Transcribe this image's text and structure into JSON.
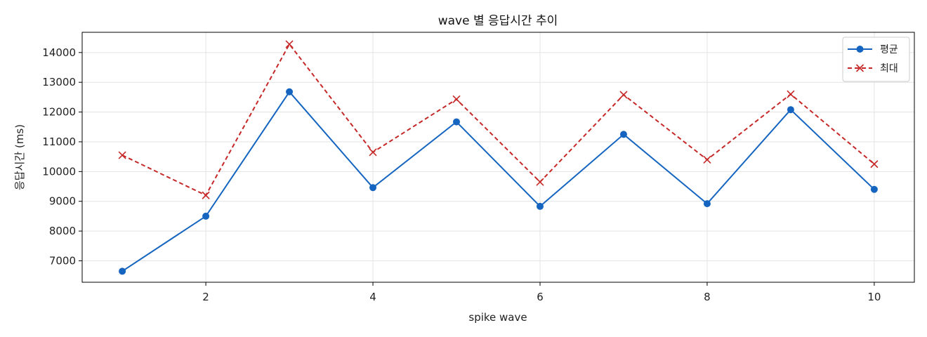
{
  "chart_data": {
    "type": "line",
    "title": "wave 별 응답시간 추이",
    "xlabel": "spike wave",
    "ylabel": "응답시간 (ms)",
    "x": [
      1,
      2,
      3,
      4,
      5,
      6,
      7,
      8,
      9,
      10
    ],
    "xlim": [
      0.52,
      10.48
    ],
    "ylim": [
      6280,
      14680
    ],
    "xticks": [
      2,
      4,
      6,
      8,
      10
    ],
    "yticks": [
      7000,
      8000,
      9000,
      10000,
      11000,
      12000,
      13000,
      14000
    ],
    "grid": true,
    "legend_position": "top-right",
    "series": [
      {
        "name": "평균",
        "color": "#1565c0",
        "line_style": "solid",
        "marker": "circle",
        "values": [
          6650,
          8500,
          12680,
          9460,
          11670,
          8830,
          11250,
          8920,
          12080,
          9400
        ]
      },
      {
        "name": "최대",
        "color": "#c62828",
        "line_style": "dashed",
        "marker": "x",
        "values": [
          10550,
          9200,
          14280,
          10650,
          12430,
          9650,
          12580,
          10400,
          12600,
          10250
        ]
      }
    ]
  }
}
